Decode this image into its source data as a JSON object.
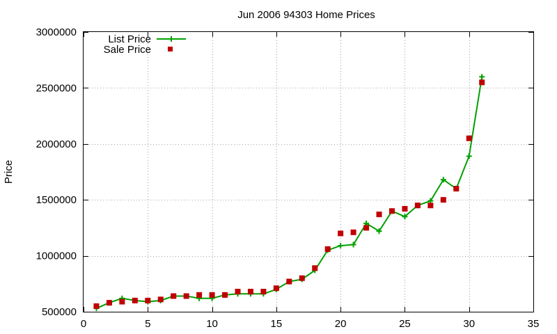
{
  "chart_data": {
    "type": "line",
    "title": "Jun 2006 94303 Home Prices",
    "xlabel": "",
    "ylabel": "Price",
    "xlim": [
      0,
      35
    ],
    "ylim": [
      500000,
      3000000
    ],
    "xticks": [
      0,
      5,
      10,
      15,
      20,
      25,
      30,
      35
    ],
    "yticks": [
      500000,
      1000000,
      1500000,
      2000000,
      2500000,
      3000000
    ],
    "grid": true,
    "legend_position": "top-left",
    "series": [
      {
        "name": "List Price",
        "style": "line-plus",
        "color": "#00a000",
        "x": [
          1,
          2,
          3,
          4,
          5,
          6,
          7,
          8,
          9,
          10,
          11,
          12,
          13,
          14,
          15,
          16,
          17,
          18,
          19,
          20,
          21,
          22,
          23,
          24,
          25,
          26,
          27,
          28,
          29,
          30,
          31
        ],
        "values": [
          530000,
          580000,
          620000,
          600000,
          590000,
          600000,
          640000,
          640000,
          620000,
          620000,
          650000,
          660000,
          660000,
          660000,
          700000,
          770000,
          790000,
          870000,
          1050000,
          1090000,
          1100000,
          1290000,
          1220000,
          1400000,
          1350000,
          1450000,
          1490000,
          1680000,
          1600000,
          1890000,
          2600000
        ]
      },
      {
        "name": "Sale Price",
        "style": "square-markers",
        "color": "#c00000",
        "x": [
          1,
          2,
          3,
          4,
          5,
          6,
          7,
          8,
          9,
          10,
          11,
          12,
          13,
          14,
          15,
          16,
          17,
          18,
          19,
          20,
          21,
          22,
          23,
          24,
          25,
          26,
          27,
          28,
          29,
          30,
          31
        ],
        "values": [
          550000,
          580000,
          590000,
          600000,
          600000,
          610000,
          640000,
          640000,
          650000,
          650000,
          650000,
          680000,
          680000,
          680000,
          710000,
          770000,
          800000,
          890000,
          1060000,
          1200000,
          1210000,
          1250000,
          1370000,
          1400000,
          1420000,
          1450000,
          1450000,
          1500000,
          1600000,
          2050000,
          2550000
        ]
      }
    ]
  }
}
